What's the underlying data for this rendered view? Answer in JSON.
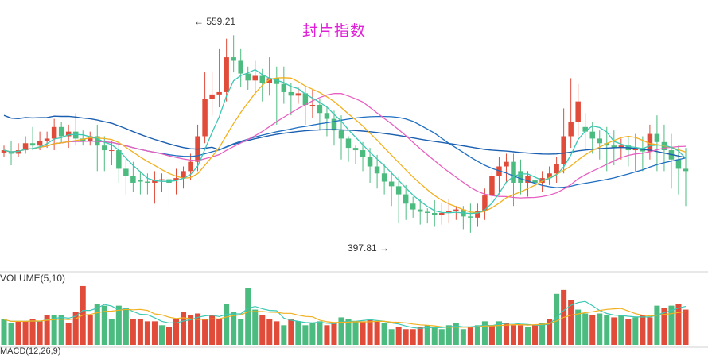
{
  "title": "封片指数",
  "volume_label": "VOLUME(5,10)",
  "bottom_label": "MACD(12,26,9)",
  "annotations": {
    "high": "← 559.21",
    "low": "397.81 →"
  },
  "colors": {
    "up": "#e04b3a",
    "down": "#4cbb7f",
    "ma5": "#3cc8b4",
    "ma10": "#f2b01e",
    "ma20": "#e85fc0",
    "ma30": "#1f6fc1",
    "ma60": "#1b5fb0",
    "vma5": "#3cc8b4",
    "vma10": "#f2b01e",
    "title": "#e020d8"
  },
  "chart_data": {
    "type": "candlestick",
    "title": "封片指数",
    "y_range": [
      365,
      575
    ],
    "high_label": 559.21,
    "low_label": 397.81,
    "candles": [
      [
        456,
        458,
        452,
        462
      ],
      [
        457,
        455,
        445,
        466
      ],
      [
        455,
        458,
        452,
        464
      ],
      [
        458,
        464,
        455,
        470
      ],
      [
        464,
        462,
        458,
        478
      ],
      [
        462,
        466,
        458,
        474
      ],
      [
        466,
        468,
        460,
        474
      ],
      [
        468,
        478,
        458,
        485
      ],
      [
        478,
        470,
        464,
        482
      ],
      [
        470,
        474,
        460,
        480
      ],
      [
        474,
        468,
        462,
        490
      ],
      [
        468,
        466,
        462,
        475
      ],
      [
        466,
        470,
        462,
        474
      ],
      [
        470,
        462,
        440,
        480
      ],
      [
        462,
        458,
        440,
        470
      ],
      [
        458,
        458,
        445,
        466
      ],
      [
        458,
        442,
        430,
        462
      ],
      [
        442,
        436,
        420,
        450
      ],
      [
        436,
        430,
        422,
        448
      ],
      [
        432,
        431,
        420,
        440
      ],
      [
        431,
        430,
        420,
        438
      ],
      [
        430,
        432,
        412,
        440
      ],
      [
        432,
        433,
        422,
        438
      ],
      [
        433,
        430,
        410,
        440
      ],
      [
        432,
        434,
        420,
        442
      ],
      [
        434,
        440,
        425,
        444
      ],
      [
        440,
        448,
        432,
        455
      ],
      [
        448,
        470,
        440,
        480
      ],
      [
        470,
        502,
        464,
        525
      ],
      [
        502,
        506,
        488,
        526
      ],
      [
        506,
        508,
        495,
        545
      ],
      [
        508,
        538,
        500,
        554
      ],
      [
        538,
        535,
        525,
        557
      ],
      [
        535,
        524,
        512,
        545
      ],
      [
        524,
        518,
        510,
        530
      ],
      [
        518,
        522,
        505,
        535
      ],
      [
        522,
        516,
        500,
        528
      ],
      [
        516,
        520,
        505,
        538
      ],
      [
        520,
        515,
        480,
        530
      ],
      [
        515,
        508,
        498,
        530
      ],
      [
        508,
        505,
        488,
        516
      ],
      [
        505,
        507,
        498,
        512
      ],
      [
        507,
        497,
        480,
        512
      ],
      [
        497,
        497,
        486,
        510
      ],
      [
        497,
        490,
        475,
        502
      ],
      [
        490,
        485,
        470,
        496
      ],
      [
        485,
        475,
        462,
        492
      ],
      [
        475,
        468,
        450,
        488
      ],
      [
        468,
        460,
        448,
        470
      ],
      [
        460,
        458,
        446,
        462
      ],
      [
        458,
        452,
        440,
        465
      ],
      [
        452,
        444,
        430,
        460
      ],
      [
        444,
        438,
        425,
        454
      ],
      [
        438,
        431,
        420,
        446
      ],
      [
        431,
        427,
        410,
        440
      ],
      [
        427,
        420,
        395,
        435
      ],
      [
        420,
        412,
        398,
        428
      ],
      [
        412,
        407,
        400,
        418
      ],
      [
        407,
        405,
        394,
        416
      ],
      [
        405,
        404,
        395,
        408
      ],
      [
        404,
        402,
        392,
        415
      ],
      [
        402,
        404,
        394,
        412
      ],
      [
        404,
        406,
        395,
        416
      ],
      [
        406,
        407,
        398,
        410
      ],
      [
        407,
        401,
        390,
        410
      ],
      [
        401,
        400,
        387,
        412
      ],
      [
        400,
        406,
        392,
        412
      ],
      [
        406,
        419,
        398,
        425
      ],
      [
        419,
        436,
        408,
        440
      ],
      [
        436,
        444,
        420,
        452
      ],
      [
        444,
        448,
        430,
        455
      ],
      [
        448,
        430,
        410,
        455
      ],
      [
        440,
        430,
        420,
        450
      ],
      [
        430,
        436,
        418,
        440
      ],
      [
        432,
        430,
        420,
        442
      ],
      [
        430,
        434,
        422,
        440
      ],
      [
        434,
        438,
        428,
        444
      ],
      [
        438,
        446,
        430,
        452
      ],
      [
        446,
        470,
        438,
        494
      ],
      [
        470,
        482,
        460,
        520
      ],
      [
        482,
        500,
        470,
        515
      ],
      [
        478,
        474,
        458,
        490
      ],
      [
        474,
        468,
        455,
        482
      ],
      [
        468,
        464,
        450,
        475
      ],
      [
        464,
        462,
        440,
        478
      ],
      [
        462,
        460,
        445,
        475
      ],
      [
        460,
        462,
        450,
        468
      ],
      [
        462,
        458,
        444,
        470
      ],
      [
        458,
        460,
        440,
        472
      ],
      [
        460,
        457,
        440,
        470
      ],
      [
        457,
        472,
        450,
        480
      ],
      [
        472,
        465,
        440,
        488
      ],
      [
        465,
        458,
        440,
        480
      ],
      [
        458,
        450,
        425,
        472
      ],
      [
        450,
        442,
        420,
        462
      ],
      [
        442,
        440,
        410,
        460
      ]
    ],
    "volume": [
      [
        2.6,
        "d"
      ],
      [
        2.2,
        "d"
      ],
      [
        2.4,
        "u"
      ],
      [
        2.4,
        "u"
      ],
      [
        2.6,
        "u"
      ],
      [
        2.4,
        "u"
      ],
      [
        3.0,
        "u"
      ],
      [
        3.0,
        "d"
      ],
      [
        3.0,
        "d"
      ],
      [
        2.2,
        "u"
      ],
      [
        3.4,
        "u"
      ],
      [
        6.0,
        "u"
      ],
      [
        3.0,
        "u"
      ],
      [
        4.2,
        "d"
      ],
      [
        4.0,
        "d"
      ],
      [
        2.6,
        "d"
      ],
      [
        4.0,
        "d"
      ],
      [
        3.8,
        "d"
      ],
      [
        2.6,
        "u"
      ],
      [
        2.6,
        "u"
      ],
      [
        2.4,
        "u"
      ],
      [
        2.4,
        "u"
      ],
      [
        2.0,
        "d"
      ],
      [
        1.8,
        "u"
      ],
      [
        2.6,
        "u"
      ],
      [
        3.4,
        "u"
      ],
      [
        3.0,
        "u"
      ],
      [
        3.2,
        "u"
      ],
      [
        2.6,
        "u"
      ],
      [
        3.0,
        "u"
      ],
      [
        2.6,
        "u"
      ],
      [
        4.2,
        "d"
      ],
      [
        3.4,
        "d"
      ],
      [
        2.6,
        "d"
      ],
      [
        5.8,
        "d"
      ],
      [
        3.6,
        "d"
      ],
      [
        3.0,
        "u"
      ],
      [
        2.6,
        "u"
      ],
      [
        2.4,
        "u"
      ],
      [
        2.0,
        "d"
      ],
      [
        2.6,
        "u"
      ],
      [
        2.4,
        "d"
      ],
      [
        2.0,
        "d"
      ],
      [
        2.2,
        "d"
      ],
      [
        2.4,
        "d"
      ],
      [
        2.0,
        "u"
      ],
      [
        2.2,
        "u"
      ],
      [
        2.8,
        "d"
      ],
      [
        2.6,
        "d"
      ],
      [
        2.4,
        "d"
      ],
      [
        2.4,
        "u"
      ],
      [
        2.6,
        "u"
      ],
      [
        2.4,
        "u"
      ],
      [
        2.2,
        "d"
      ],
      [
        1.6,
        "d"
      ],
      [
        1.8,
        "u"
      ],
      [
        1.6,
        "u"
      ],
      [
        1.6,
        "u"
      ],
      [
        1.8,
        "u"
      ],
      [
        2.0,
        "d"
      ],
      [
        1.8,
        "d"
      ],
      [
        1.6,
        "d"
      ],
      [
        2.0,
        "d"
      ],
      [
        2.2,
        "d"
      ],
      [
        1.6,
        "d"
      ],
      [
        1.8,
        "u"
      ],
      [
        2.0,
        "d"
      ],
      [
        2.4,
        "d"
      ],
      [
        2.0,
        "u"
      ],
      [
        2.4,
        "d"
      ],
      [
        2.2,
        "u"
      ],
      [
        2.0,
        "u"
      ],
      [
        2.0,
        "u"
      ],
      [
        1.8,
        "d"
      ],
      [
        2.0,
        "u"
      ],
      [
        2.2,
        "d"
      ],
      [
        2.6,
        "u"
      ],
      [
        5.2,
        "d"
      ],
      [
        5.6,
        "u"
      ],
      [
        4.6,
        "u"
      ],
      [
        3.6,
        "d"
      ],
      [
        3.2,
        "d"
      ],
      [
        3.0,
        "u"
      ],
      [
        3.2,
        "d"
      ],
      [
        3.0,
        "d"
      ],
      [
        2.8,
        "u"
      ],
      [
        3.0,
        "d"
      ],
      [
        2.6,
        "u"
      ],
      [
        2.8,
        "d"
      ],
      [
        3.0,
        "u"
      ],
      [
        2.8,
        "u"
      ],
      [
        4.0,
        "d"
      ],
      [
        3.8,
        "u"
      ],
      [
        4.0,
        "d"
      ],
      [
        4.2,
        "u"
      ],
      [
        3.6,
        "u"
      ]
    ]
  }
}
